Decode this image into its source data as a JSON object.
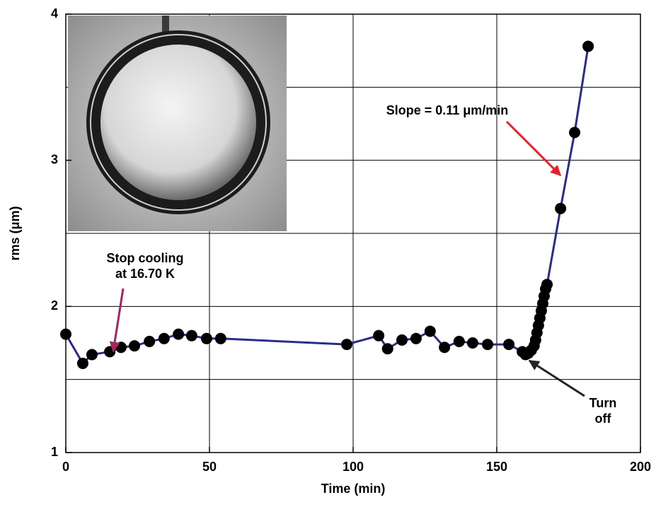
{
  "chart_data": {
    "type": "line",
    "xlabel": "Time (min)",
    "ylabel": "rms (μm)",
    "xlim": [
      0,
      200
    ],
    "xticks": [
      0,
      50,
      100,
      150,
      200
    ],
    "ylim": [
      1,
      4
    ],
    "yticks": [
      1,
      2,
      3,
      4
    ],
    "ygrid": [
      1.5,
      2,
      2.5,
      3,
      3.5
    ],
    "grid": true,
    "series": [
      {
        "color": "#2b2b8c",
        "marker_color": "#000000",
        "x": [
          0,
          5.9,
          9.1,
          15.3,
          19.2,
          23.9,
          29.1,
          34.2,
          39.2,
          43.8,
          49,
          53.9,
          97.8,
          108.9,
          112,
          117,
          121.9,
          126.8,
          131.8,
          136.9,
          141.6,
          146.8,
          154.2,
          158.9,
          160,
          161,
          162,
          163,
          163.5,
          164,
          164.5,
          165,
          165.5,
          166,
          166.5,
          167,
          167.5,
          172.2,
          177.1,
          181.8
        ],
        "values": [
          1.81,
          1.61,
          1.67,
          1.69,
          1.72,
          1.73,
          1.76,
          1.78,
          1.81,
          1.8,
          1.78,
          1.78,
          1.74,
          1.8,
          1.71,
          1.77,
          1.78,
          1.83,
          1.72,
          1.76,
          1.75,
          1.74,
          1.74,
          1.69,
          1.67,
          1.68,
          1.7,
          1.73,
          1.77,
          1.82,
          1.87,
          1.92,
          1.97,
          2.02,
          2.07,
          2.12,
          2.15,
          2.67,
          3.19,
          3.78
        ]
      }
    ],
    "annotations": [
      {
        "lines": [
          "Slope = 0.11 μm/min"
        ],
        "color": "#e8202a"
      },
      {
        "lines": [
          "Stop cooling",
          "at 16.70 K"
        ],
        "color": "#a3265e"
      },
      {
        "lines": [
          "Turn",
          "off"
        ],
        "color": "#222222"
      }
    ]
  }
}
